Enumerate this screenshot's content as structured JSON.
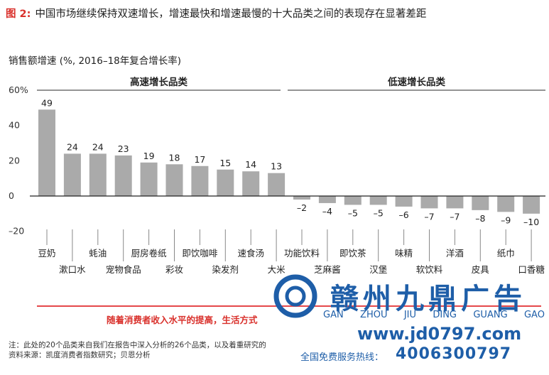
{
  "header": {
    "figure_label": "图 2:",
    "title": "中国市场继续保持双速增长，增速最快和增速最慢的十大品类之间的表现存在显著差距"
  },
  "chart_data": {
    "type": "bar",
    "ylabel": "销售额增速 (%, 2016–18年复合增长率)",
    "ylim": [
      -20,
      60
    ],
    "yticks": [
      "60%",
      "40",
      "20",
      "0",
      "–20"
    ],
    "groups": [
      {
        "label": "高速增长品类",
        "range": [
          0,
          9
        ]
      },
      {
        "label": "低速增长品类",
        "range": [
          10,
          19
        ]
      }
    ],
    "categories": [
      "豆奶",
      "漱口水",
      "蚝油",
      "宠物食品",
      "厨房卷纸",
      "彩妆",
      "即饮咖啡",
      "染发剂",
      "速食汤",
      "大米",
      "功能饮料",
      "芝麻酱",
      "即饮茶",
      "汉堡",
      "味精",
      "软饮料",
      "洋酒",
      "皮具",
      "纸巾",
      "口香糖"
    ],
    "values": [
      49,
      24,
      24,
      23,
      19,
      18,
      17,
      15,
      14,
      13,
      -2,
      -4,
      -5,
      -5,
      -6,
      -7,
      -7,
      -8,
      -9,
      -10
    ],
    "value_labels": [
      "49",
      "24",
      "24",
      "23",
      "19",
      "18",
      "17",
      "15",
      "14",
      "13",
      "–2",
      "–4",
      "–5",
      "–5",
      "–6",
      "–7",
      "–7",
      "–8",
      "–9",
      "–10"
    ],
    "bar_color": "#aaaaaa"
  },
  "caption": "随着消费者收入水平的提高，生活方式",
  "notes": [
    "注：此处的20个品类来自我们在报告中深入分析的26个品类，以及着重研究的",
    "资料来源：凯度消费者指数研究；贝恩分析"
  ],
  "watermark": {
    "brand": "赣州九鼎广告",
    "pinyin": [
      "GAN",
      "ZHOU",
      "JIU",
      "DING",
      "GUANG",
      "GAO"
    ],
    "url": "www.jd0797.com",
    "hotline_label": "全国免费服务热线：",
    "phone": "4006300797",
    "color": "#1e5ea8"
  }
}
